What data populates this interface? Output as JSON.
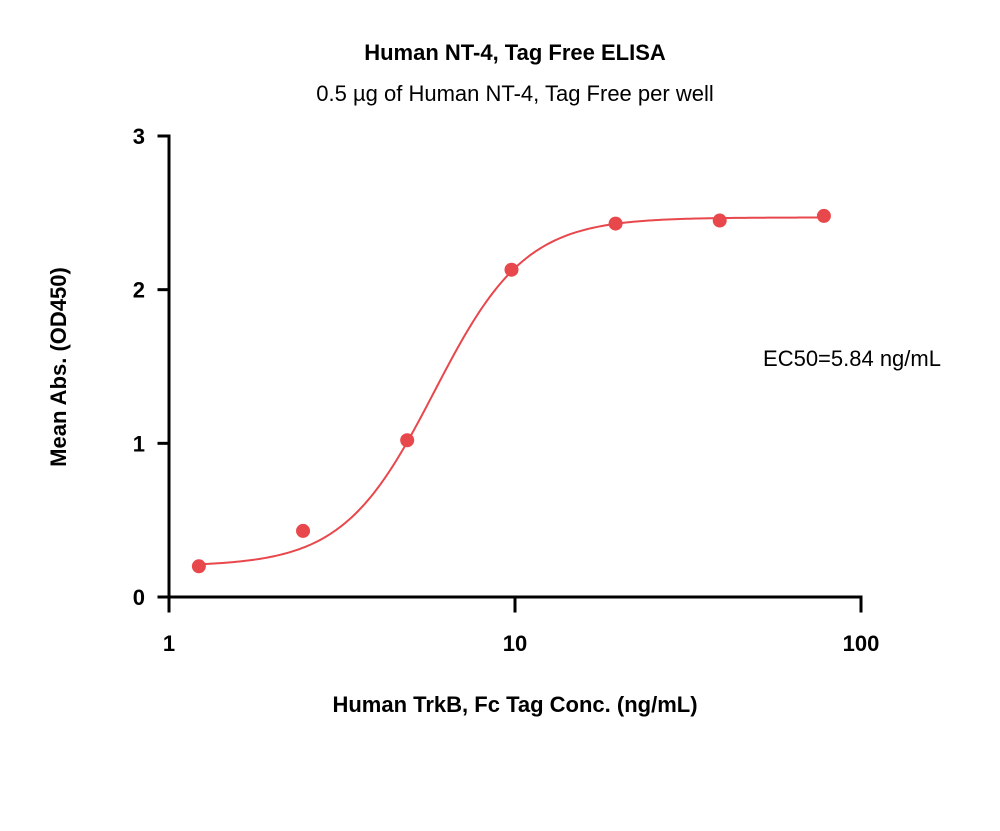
{
  "chart_data": {
    "type": "scatter",
    "title": "Human NT-4, Tag Free ELISA",
    "subtitle": "0.5 µg of Human NT-4, Tag Free per well",
    "xlabel": "Human TrkB, Fc Tag Conc. (ng/mL)",
    "ylabel": "Mean Abs. (OD450)",
    "x_scale": "log",
    "xlim": [
      1,
      100
    ],
    "ylim": [
      0,
      3
    ],
    "x_ticks": [
      1,
      10,
      100
    ],
    "x_tick_labels": [
      "1",
      "10",
      "100"
    ],
    "y_ticks": [
      0,
      1,
      2,
      3
    ],
    "y_tick_labels": [
      "0",
      "1",
      "2",
      "3"
    ],
    "grid": false,
    "color": "#e8474c",
    "series": [
      {
        "x": [
          1.22,
          2.44,
          4.88,
          9.77,
          19.53,
          39.06,
          78.13
        ],
        "y": [
          0.2,
          0.43,
          1.02,
          2.13,
          2.43,
          2.45,
          2.48
        ]
      }
    ],
    "fit": {
      "bottom": 0.2,
      "top": 2.47,
      "ec50": 5.84,
      "hill": 3.3
    },
    "annotations": [
      "EC50=5.84 ng/mL"
    ]
  }
}
